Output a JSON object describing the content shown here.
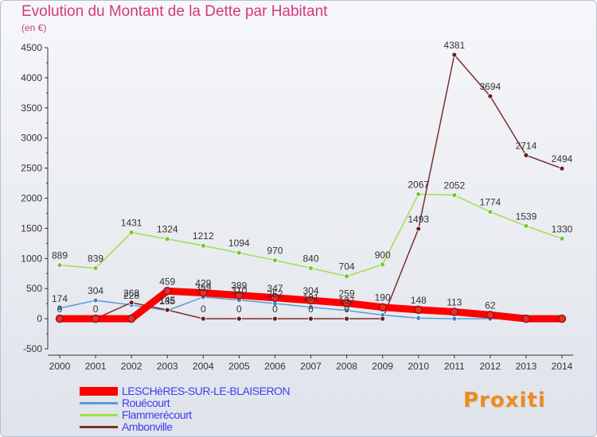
{
  "title": "Evolution du Montant de la Dette par Habitant",
  "subtitle": "(en €)",
  "brand": "Proxiti",
  "colors": {
    "title": "#d4387e",
    "legend_text": "#3d3df0",
    "axis": "#333333"
  },
  "chart_data": {
    "type": "line",
    "title": "Evolution du Montant de la Dette par Habitant",
    "ylabel": "(en €)",
    "xlabel": "",
    "ylim": [
      -500,
      4500
    ],
    "yticks": [
      -500,
      0,
      500,
      1000,
      1500,
      2000,
      2500,
      3000,
      3500,
      4000,
      4500
    ],
    "categories": [
      "2000",
      "2001",
      "2002",
      "2003",
      "2004",
      "2005",
      "2006",
      "2007",
      "2008",
      "2009",
      "2010",
      "2011",
      "2012",
      "2013",
      "2014"
    ],
    "legend_position": "bottom-left",
    "series": [
      {
        "name": "LESCHèRES-SUR-LE-BLAISERON",
        "color": "#ff0000",
        "marker": "#e53030",
        "thick": true,
        "values": [
          0,
          0,
          0,
          459,
          429,
          389,
          347,
          304,
          259,
          190,
          148,
          113,
          62,
          0,
          0
        ],
        "labels": [
          "",
          "",
          "",
          "459",
          "429",
          "389",
          "347",
          "304",
          "259",
          "190",
          "148",
          "113",
          "62",
          "",
          ""
        ]
      },
      {
        "name": "Rouécourt",
        "color": "#5b9bd5",
        "marker": "#3f86c9",
        "thick": false,
        "values": [
          174,
          304,
          228,
          135,
          359,
          310,
          252,
          191,
          137,
          60,
          10,
          0,
          0,
          0,
          0
        ],
        "labels": [
          "174",
          "304",
          "228",
          "135",
          "359",
          "310",
          "252",
          "191",
          "137",
          "",
          "",
          "",
          "",
          "",
          ""
        ]
      },
      {
        "name": "Flammerécourt",
        "color": "#9ee04e",
        "marker": "#79c535",
        "thick": false,
        "values": [
          889,
          839,
          1431,
          1324,
          1212,
          1094,
          970,
          840,
          704,
          900,
          2067,
          2052,
          1774,
          1539,
          1330
        ],
        "labels": [
          "889",
          "839",
          "1431",
          "1324",
          "1212",
          "1094",
          "970",
          "840",
          "704",
          "900",
          "2067",
          "2052",
          "1774",
          "1539",
          "1330"
        ]
      },
      {
        "name": "Ambonville",
        "color": "#7a2f2f",
        "marker": "#6a1f1f",
        "thick": false,
        "values": [
          0,
          0,
          268,
          145,
          0,
          0,
          0,
          0,
          0,
          0,
          1493,
          4381,
          3694,
          2714,
          2494
        ],
        "labels": [
          "0",
          "0",
          "268",
          "145",
          "0",
          "0",
          "0",
          "0",
          "0",
          "",
          "1493",
          "4381",
          "3694",
          "2714",
          "2494"
        ]
      }
    ]
  }
}
